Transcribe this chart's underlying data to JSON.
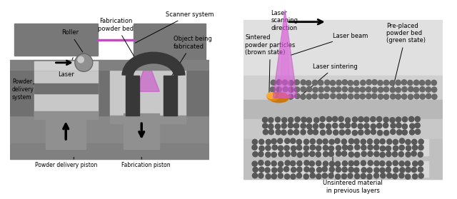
{
  "gray_dark": "#787878",
  "gray_med": "#909090",
  "gray_light": "#c0c0c0",
  "gray_powder": "#c8c8c8",
  "gray_wall": "#707070",
  "gray_deep": "#606060",
  "laser_color": "#cc44cc",
  "object_color": "#383838",
  "roller_color": "#909090",
  "sintered_color": "#e08820",
  "sintered_color2": "#cc7710",
  "powder_dot_color": "#686868",
  "powder_dot_color2": "#585858",
  "bg": "#f5f5f5",
  "labels": {
    "scanner": "Scanner system",
    "laser": "Laser",
    "roller": "Roller",
    "powder_delivery": "Powder\ndelivery\nsystem",
    "fab_powder_bed": "Fabrication\npowder bed",
    "object_being": "Object being\nfabricated",
    "powder_piston": "Powder delivery piston",
    "fab_piston": "Fabrication piston",
    "laser_scan_dir": "Laser\nscanning\ndirection",
    "laser_beam": "Laser beam",
    "pre_placed": "Pre-placed\npowder bed\n(green state)",
    "sintered_particles": "Sintered\npowder particles\n(brown state)",
    "laser_sintering": "Laser sintering",
    "unsintered": "Unsintered material\nin previous layers"
  }
}
